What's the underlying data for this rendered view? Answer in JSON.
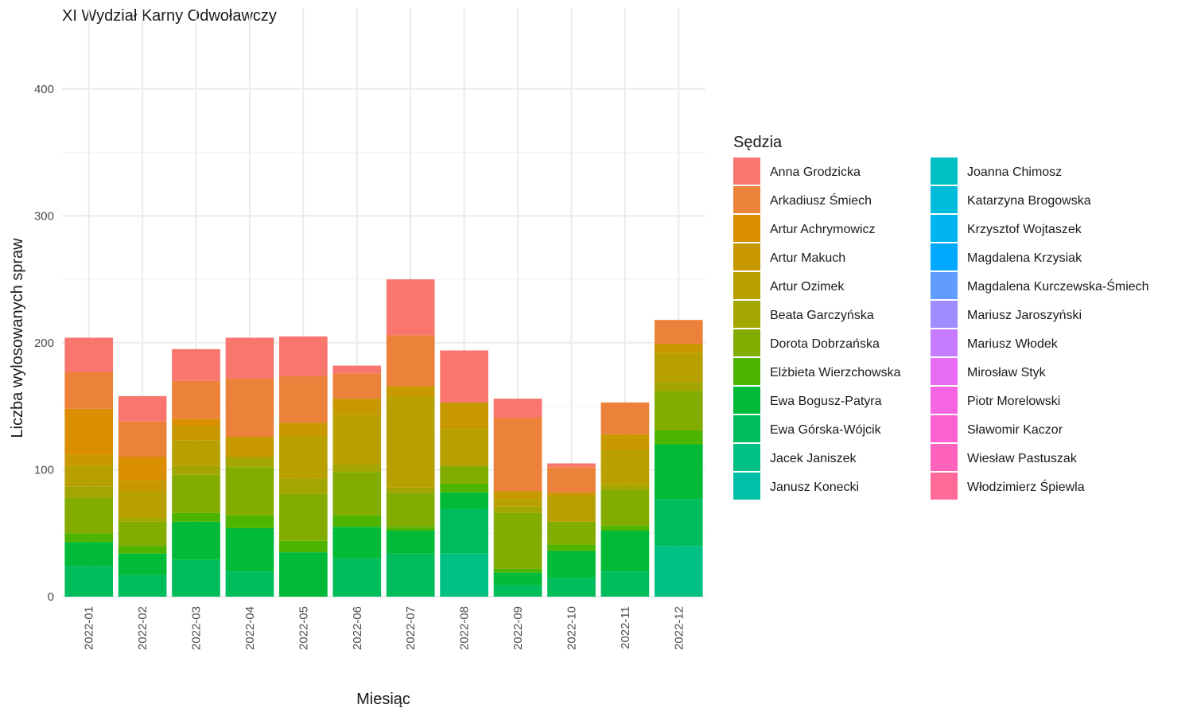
{
  "chart_data": {
    "type": "bar",
    "stacked": true,
    "title": "XI Wydział Karny Odwoławczy",
    "xlabel": "Miesiąc",
    "ylabel": "Liczba wylosowanych spraw",
    "ylim": [
      0,
      445
    ],
    "yticks": [
      0,
      100,
      200,
      300,
      400
    ],
    "grid": true,
    "legend_title": "Sędzia",
    "legend_position": "right",
    "categories": [
      "2022-01",
      "2022-02",
      "2022-03",
      "2022-04",
      "2022-05",
      "2022-06",
      "2022-07",
      "2022-08",
      "2022-09",
      "2022-10",
      "2022-11",
      "2022-12"
    ],
    "series": [
      {
        "name": "Anna Grodzicka",
        "color": "#F8766D",
        "values": [
          27,
          20,
          25,
          32,
          31,
          6,
          44,
          41,
          15,
          3,
          0,
          0
        ]
      },
      {
        "name": "Arkadiusz Śmiech",
        "color": "#EC8239",
        "values": [
          29,
          28,
          30,
          46,
          37,
          20,
          40,
          0,
          58,
          20,
          25,
          19
        ]
      },
      {
        "name": "Artur Achrymowicz",
        "color": "#DB8E00",
        "values": [
          36,
          18,
          5,
          0,
          0,
          0,
          0,
          0,
          0,
          0,
          0,
          0
        ]
      },
      {
        "name": "Artur Makuch",
        "color": "#C79800",
        "values": [
          9,
          9,
          12,
          16,
          11,
          13,
          8,
          21,
          6,
          3,
          13,
          7
        ]
      },
      {
        "name": "Artur Ozimek",
        "color": "#B8A000",
        "values": [
          16,
          21,
          20,
          0,
          33,
          39,
          72,
          29,
          6,
          20,
          27,
          23
        ]
      },
      {
        "name": "Beata Garczyńska",
        "color": "#A3A500",
        "values": [
          9,
          3,
          7,
          8,
          12,
          6,
          4,
          0,
          5,
          0,
          4,
          7
        ]
      },
      {
        "name": "Dorota Dobrzańska",
        "color": "#82AC00",
        "values": [
          28,
          19,
          30,
          38,
          37,
          34,
          27,
          14,
          44,
          18,
          28,
          31
        ]
      },
      {
        "name": "Elżbieta Wierzchowska",
        "color": "#4DB400",
        "values": [
          7,
          6,
          7,
          10,
          9,
          9,
          3,
          7,
          3,
          5,
          4,
          11
        ]
      },
      {
        "name": "Ewa Bogusz-Patyra",
        "color": "#00BA38",
        "values": [
          19,
          17,
          30,
          34,
          35,
          25,
          18,
          13,
          10,
          21,
          32,
          43
        ]
      },
      {
        "name": "Ewa Górska-Wójcik",
        "color": "#00BD5C",
        "values": [
          24,
          17,
          29,
          20,
          0,
          30,
          34,
          35,
          9,
          15,
          20,
          37
        ]
      },
      {
        "name": "Jacek Janiszek",
        "color": "#00C083",
        "values": [
          0,
          0,
          0,
          0,
          0,
          0,
          0,
          34,
          0,
          0,
          0,
          40
        ]
      },
      {
        "name": "Janusz Konecki",
        "color": "#00C1A7",
        "values": [
          0,
          0,
          0,
          0,
          0,
          0,
          0,
          0,
          0,
          0,
          0,
          0
        ]
      },
      {
        "name": "Joanna Chimosz",
        "color": "#00BFC4",
        "values": [
          0,
          0,
          0,
          0,
          0,
          0,
          0,
          0,
          0,
          0,
          0,
          0
        ]
      },
      {
        "name": "Katarzyna Brogowska",
        "color": "#00BBDB",
        "values": [
          0,
          0,
          0,
          0,
          0,
          0,
          0,
          0,
          0,
          0,
          0,
          0
        ]
      },
      {
        "name": "Krzysztof Wojtaszek",
        "color": "#00B4F0",
        "values": [
          0,
          0,
          0,
          0,
          0,
          0,
          0,
          0,
          0,
          0,
          0,
          0
        ]
      },
      {
        "name": "Magdalena Krzysiak",
        "color": "#00A9FF",
        "values": [
          0,
          0,
          0,
          0,
          0,
          0,
          0,
          0,
          0,
          0,
          0,
          0
        ]
      },
      {
        "name": "Magdalena Kurczewska-Śmiech",
        "color": "#619CFF",
        "values": [
          0,
          0,
          0,
          0,
          0,
          0,
          0,
          0,
          0,
          0,
          0,
          0
        ]
      },
      {
        "name": "Mariusz Jaroszyński",
        "color": "#9F8CFF",
        "values": [
          0,
          0,
          0,
          0,
          0,
          0,
          0,
          0,
          0,
          0,
          0,
          0
        ]
      },
      {
        "name": "Mariusz Włodek",
        "color": "#C77CFF",
        "values": [
          0,
          0,
          0,
          0,
          0,
          0,
          0,
          0,
          0,
          0,
          0,
          0
        ]
      },
      {
        "name": "Mirosław Styk",
        "color": "#E76BF3",
        "values": [
          0,
          0,
          0,
          0,
          0,
          0,
          0,
          0,
          0,
          0,
          0,
          0
        ]
      },
      {
        "name": "Piotr Morelowski",
        "color": "#F564E3",
        "values": [
          0,
          0,
          0,
          0,
          0,
          0,
          0,
          0,
          0,
          0,
          0,
          0
        ]
      },
      {
        "name": "Sławomir Kaczor",
        "color": "#FD61D1",
        "values": [
          0,
          0,
          0,
          0,
          0,
          0,
          0,
          0,
          0,
          0,
          0,
          0
        ]
      },
      {
        "name": "Wiesław Pastuszak",
        "color": "#FF62BC",
        "values": [
          0,
          0,
          0,
          0,
          0,
          0,
          0,
          0,
          0,
          0,
          0,
          0
        ]
      },
      {
        "name": "Włodzimierz Śpiewla",
        "color": "#FF6A98",
        "values": [
          0,
          0,
          0,
          0,
          0,
          0,
          0,
          0,
          0,
          0,
          0,
          0
        ]
      }
    ]
  }
}
